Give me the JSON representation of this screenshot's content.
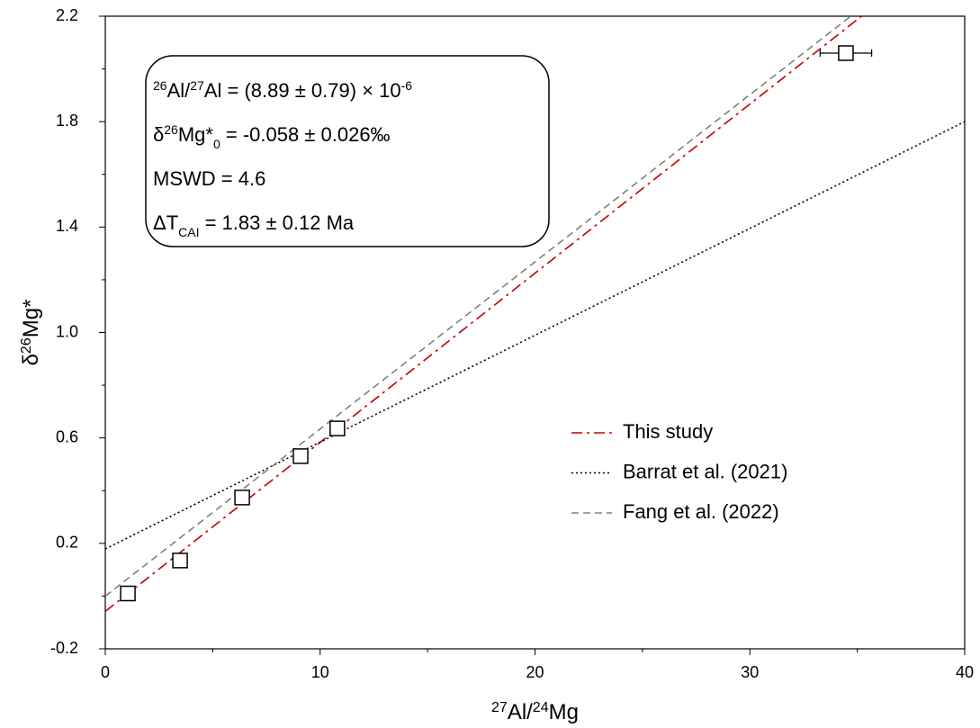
{
  "chart_data": {
    "type": "scatter",
    "xlabel": [
      {
        "sup": "27"
      },
      {
        "text": "Al/"
      },
      {
        "sup": "24"
      },
      {
        "text": "Mg"
      }
    ],
    "ylabel": [
      {
        "text": "δ"
      },
      {
        "sup": "26"
      },
      {
        "text": "Mg*"
      }
    ],
    "xlim": [
      0,
      40
    ],
    "xticks": [
      0,
      10,
      20,
      30,
      40
    ],
    "xminorticks": [
      5,
      15,
      25,
      35
    ],
    "ylim": [
      -0.2,
      2.2
    ],
    "yticks": [
      -0.2,
      0.2,
      0.6,
      {
        "value": 1,
        "label": "1.0"
      },
      1.4,
      1.8,
      2.2
    ],
    "yminorticks": [
      0,
      0.4,
      0.8,
      1.2,
      1.6,
      2
    ],
    "grid": false,
    "points": {
      "marker": "square",
      "color": "#000000",
      "x": [
        1.05,
        3.48,
        6.37,
        9.09,
        10.8,
        34.47
      ],
      "values": [
        0.01,
        0.135,
        0.374,
        0.531,
        0.636,
        2.06
      ],
      "xerr": [
        null,
        null,
        null,
        0.3,
        0.3,
        1.2
      ]
    },
    "series": [
      {
        "name": "This study",
        "color": "#c00000",
        "dash": "dashdot",
        "x": [
          0,
          35.2
        ],
        "values": [
          -0.058,
          2.2
        ]
      },
      {
        "name": "Barrat et al. (2021)",
        "color": "#000000",
        "dash": "dotted",
        "x": [
          0,
          40
        ],
        "values": [
          0.179,
          1.8
        ]
      },
      {
        "name": "Fang et al. (2022)",
        "color": "#808080",
        "dash": "dashed",
        "x": [
          0,
          34.7
        ],
        "values": [
          0,
          2.2
        ]
      }
    ],
    "legend": "lower-right",
    "annotation": [
      [
        {
          "sup": "26"
        },
        {
          "text": "Al/"
        },
        {
          "sup": "27"
        },
        {
          "text": "Al = (8.89 ± 0.79) × 10"
        },
        {
          "sup": "-6"
        }
      ],
      [
        {
          "text": "δ"
        },
        {
          "sup": "26"
        },
        {
          "text": "Mg*"
        },
        {
          "sub": "0"
        },
        {
          "text": " = -0.058 ± 0.026‰"
        }
      ],
      [
        {
          "text": "MSWD = 4.6"
        }
      ],
      [
        {
          "text": "ΔT"
        },
        {
          "sub": "CAI"
        },
        {
          "text": " = 1.83 ± 0.12 Ma"
        }
      ]
    ]
  }
}
